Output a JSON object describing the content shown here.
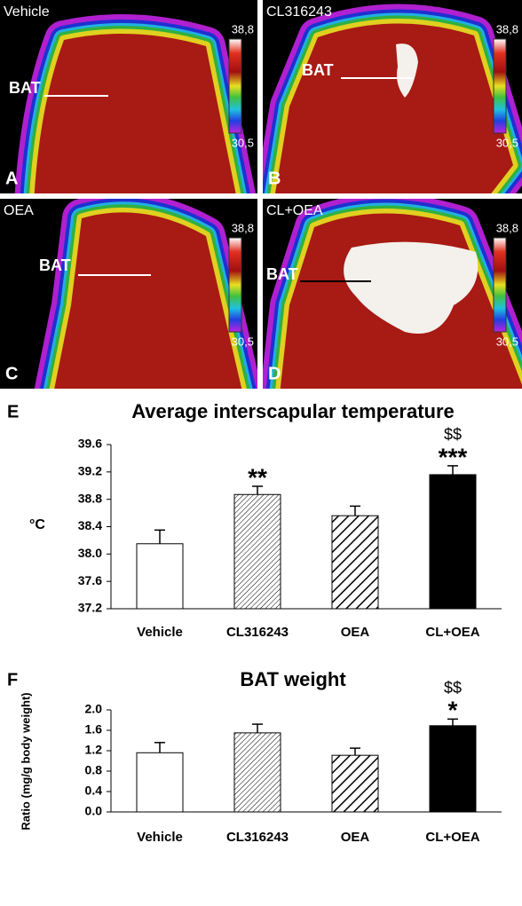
{
  "panels": [
    {
      "letter": "A",
      "label": "Vehicle",
      "marker": "BAT",
      "scale_max": "38,8",
      "scale_min": "30,5"
    },
    {
      "letter": "B",
      "label": "CL316243",
      "marker": "BAT",
      "scale_max": "38,8",
      "scale_min": "30,5"
    },
    {
      "letter": "C",
      "label": "OEA",
      "marker": "BAT",
      "scale_max": "38,8",
      "scale_min": "30,5"
    },
    {
      "letter": "D",
      "label": "CL+OEA",
      "marker": "BAT",
      "scale_max": "38,8",
      "scale_min": "30,5"
    }
  ],
  "chart_data": [
    {
      "type": "bar",
      "letter": "E",
      "title": "Average interscapular temperature",
      "y_label": "°C",
      "categories": [
        "Vehicle",
        "CL316243",
        "OEA",
        "CL+OEA"
      ],
      "values": [
        38.15,
        38.87,
        38.56,
        39.16
      ],
      "errors": [
        0.2,
        0.12,
        0.14,
        0.13
      ],
      "colors": [
        "#ffffff",
        "#000000",
        "#000000",
        "#000000"
      ],
      "patterns": [
        "none",
        "fine-hatch",
        "wide-hatch",
        "none"
      ],
      "annotations": [
        [],
        [
          "**"
        ],
        [],
        [
          "$$",
          "***"
        ]
      ],
      "ylim": [
        37.2,
        39.6
      ],
      "yticks": [
        37.2,
        37.6,
        {
          "value": 38.0,
          "label": "38.0"
        },
        38.4,
        38.8,
        39.2,
        39.6
      ]
    },
    {
      "type": "bar",
      "letter": "F",
      "title": "BAT weight",
      "y_label": "Ratio (mg/g body weight)",
      "categories": [
        "Vehicle",
        "CL316243",
        "OEA",
        "CL+OEA"
      ],
      "values": [
        1.16,
        1.55,
        1.11,
        1.69
      ],
      "errors": [
        0.2,
        0.17,
        0.14,
        0.13
      ],
      "colors": [
        "#ffffff",
        "#000000",
        "#000000",
        "#000000"
      ],
      "patterns": [
        "none",
        "fine-hatch",
        "wide-hatch",
        "none"
      ],
      "annotations": [
        [],
        [],
        [],
        [
          "$$",
          "*"
        ]
      ],
      "ylim": [
        0,
        2
      ],
      "yticks": [
        {
          "value": 0,
          "label": "0.0"
        },
        0.4,
        0.8,
        1.2,
        1.6,
        {
          "value": 2,
          "label": "2.0"
        }
      ]
    }
  ]
}
